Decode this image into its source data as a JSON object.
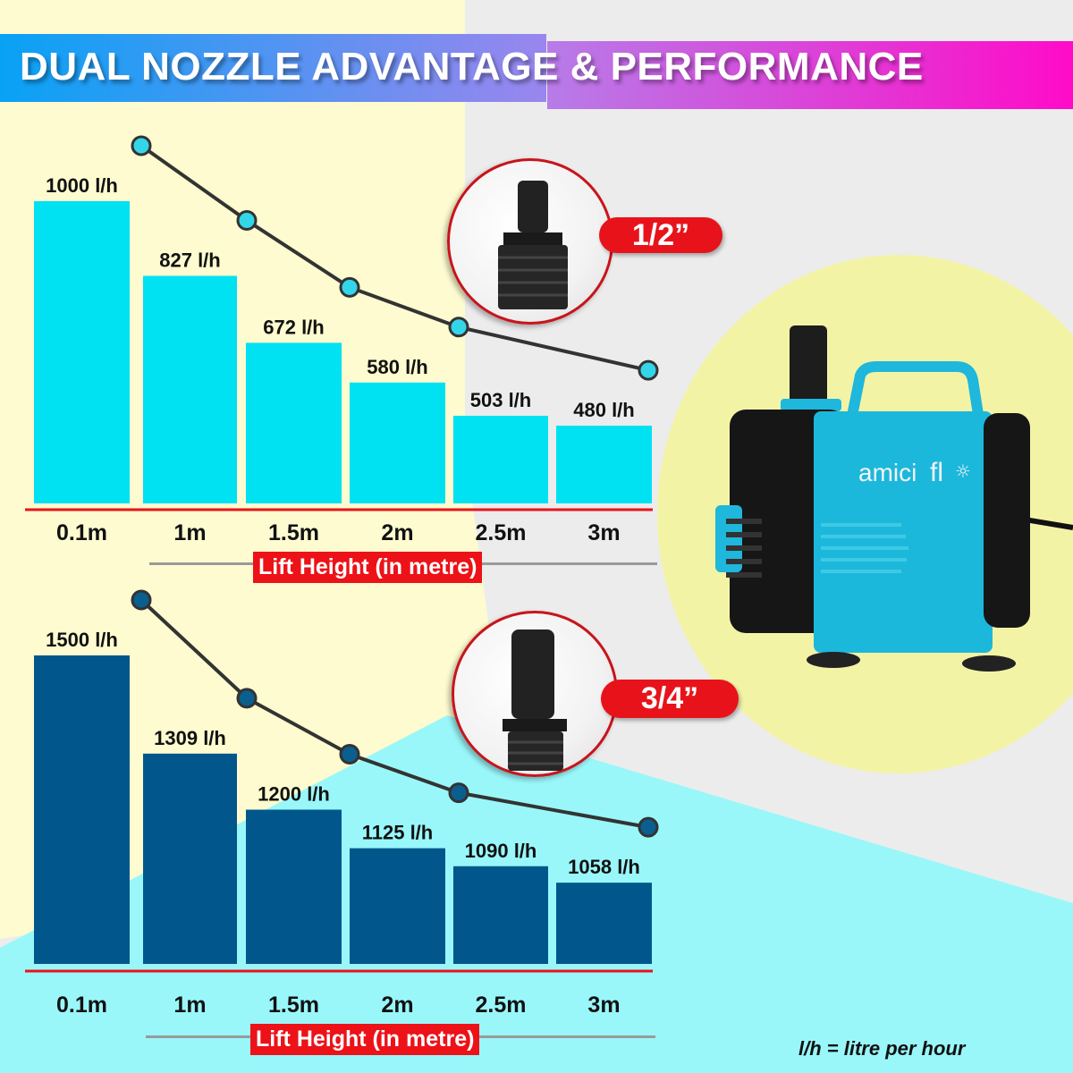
{
  "title": "DUAL NOZZLE ADVANTAGE & PERFORMANCE",
  "brand": "amiciflo",
  "footnote": "l/h = litre per hour",
  "colors": {
    "half_inch_bars": "#00e1f2",
    "three_quarter_bars": "#01578b",
    "badge": "#e8131a",
    "line": "#333333"
  },
  "chart_data": [
    {
      "type": "bar",
      "badge": "1/2”",
      "categories": [
        "0.1m",
        "1m",
        "1.5m",
        "2m",
        "2.5m",
        "3m"
      ],
      "values": [
        1000,
        827,
        672,
        580,
        503,
        480
      ],
      "data_labels": [
        "1000 l/h",
        "827 l/h",
        "672 l/h",
        "580 l/h",
        "503 l/h",
        "480 l/h"
      ],
      "xlabel": "Lift Height (in metre)",
      "unit": "l/h",
      "ylim": [
        300,
        1000
      ],
      "trend_line": true,
      "grid": false
    },
    {
      "type": "bar",
      "badge": "3/4”",
      "categories": [
        "0.1m",
        "1m",
        "1.5m",
        "2m",
        "2.5m",
        "3m"
      ],
      "values": [
        1500,
        1309,
        1200,
        1125,
        1090,
        1058
      ],
      "data_labels": [
        "1500 l/h",
        "1309 l/h",
        "1200 l/h",
        "1125 l/h",
        "1090 l/h",
        "1058 l/h"
      ],
      "xlabel": "Lift Height (in metre)",
      "unit": "l/h",
      "ylim": [
        900,
        1500
      ],
      "trend_line": true,
      "grid": false
    }
  ]
}
